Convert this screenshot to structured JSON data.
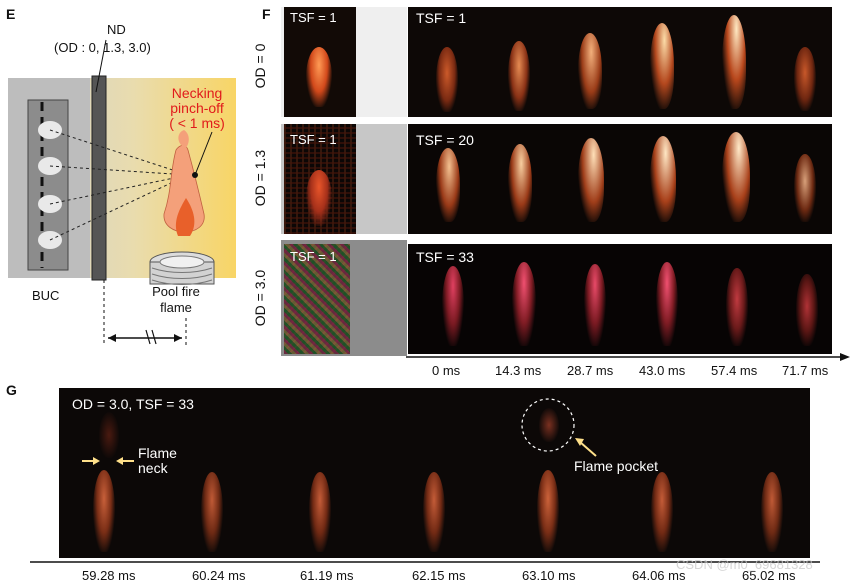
{
  "panel_e": {
    "letter": "E",
    "nd_label": "ND",
    "od_label": "(OD : 0, 1.3, 3.0)",
    "necking_label": "Necking\npinch-off\n( < 1 ms)",
    "buc_label": "BUC",
    "pool_fire_label": "Pool fire\nflame",
    "colors": {
      "necking": "#e11b1b",
      "glow": "#f5d35a"
    }
  },
  "panel_f": {
    "letter": "F",
    "rows": [
      {
        "od_label": "OD = 0",
        "ref_tsf": "TSF = 1",
        "seq_tsf": "TSF = 1"
      },
      {
        "od_label": "OD = 1.3",
        "ref_tsf": "TSF = 1",
        "seq_tsf": "TSF = 20"
      },
      {
        "od_label": "OD = 3.0",
        "ref_tsf": "TSF = 1",
        "seq_tsf": "TSF = 33"
      }
    ],
    "times": [
      "0 ms",
      "14.3 ms",
      "28.7 ms",
      "43.0 ms",
      "57.4 ms",
      "71.7 ms"
    ]
  },
  "panel_g": {
    "letter": "G",
    "header": "OD = 3.0,  TSF = 33",
    "flame_neck_label": "Flame\nneck",
    "flame_pocket_label": "Flame pocket",
    "times": [
      "59.28 ms",
      "60.24 ms",
      "61.19 ms",
      "62.15 ms",
      "63.10 ms",
      "64.06 ms",
      "65.02 ms"
    ],
    "colors": {
      "arrow": "#ffe08a"
    }
  },
  "watermark": "CSDN @m0_69681328"
}
